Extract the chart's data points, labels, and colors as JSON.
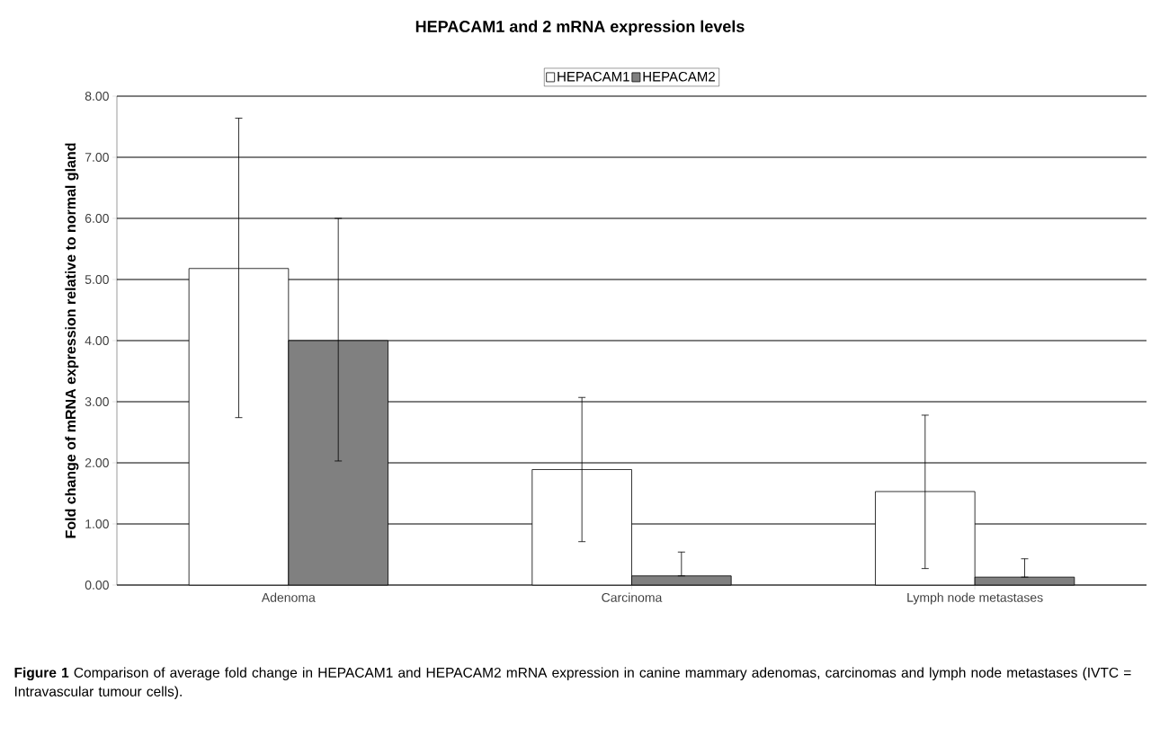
{
  "chart_data": {
    "type": "bar",
    "title": "HEPACAM1 and 2 mRNA expression levels",
    "ylabel": "Fold change of mRNA expression relative to normal gland",
    "categories": [
      "Adenoma",
      "Carcinoma",
      "Lymph node metastases"
    ],
    "series": [
      {
        "name": "HEPACAM1",
        "color": "#ffffff",
        "values": [
          5.18,
          1.89,
          1.53
        ],
        "errors": [
          [
            2.74,
            7.64
          ],
          [
            0.71,
            3.07
          ],
          [
            0.27,
            2.78
          ]
        ]
      },
      {
        "name": "HEPACAM2",
        "color": "#808080",
        "values": [
          4.0,
          0.15,
          0.13
        ],
        "errors": [
          [
            2.03,
            6.0
          ],
          [
            0.15,
            0.54
          ],
          [
            0.13,
            0.43
          ]
        ]
      }
    ],
    "ylim": [
      0,
      8
    ],
    "yticks": [
      {
        "value": 0,
        "label": "0.00"
      },
      {
        "value": 1,
        "label": "1.00"
      },
      {
        "value": 2,
        "label": "2.00"
      },
      {
        "value": 3,
        "label": "3.00"
      },
      {
        "value": 4,
        "label": "4.00"
      },
      {
        "value": 5,
        "label": "5.00"
      },
      {
        "value": 6,
        "label": "6.00"
      },
      {
        "value": 7,
        "label": "7.00"
      },
      {
        "value": 8,
        "label": "8.00"
      }
    ],
    "grid": "y",
    "legend": "top",
    "annotations": [
      "**Figure 1** Comparison of average fold change in HEPACAM1 and HEPACAM2 mRNA expression in canine mammary adenomas, carcinomas and lymph node metastases (IVTC = Intravascular tumour cells)."
    ]
  }
}
